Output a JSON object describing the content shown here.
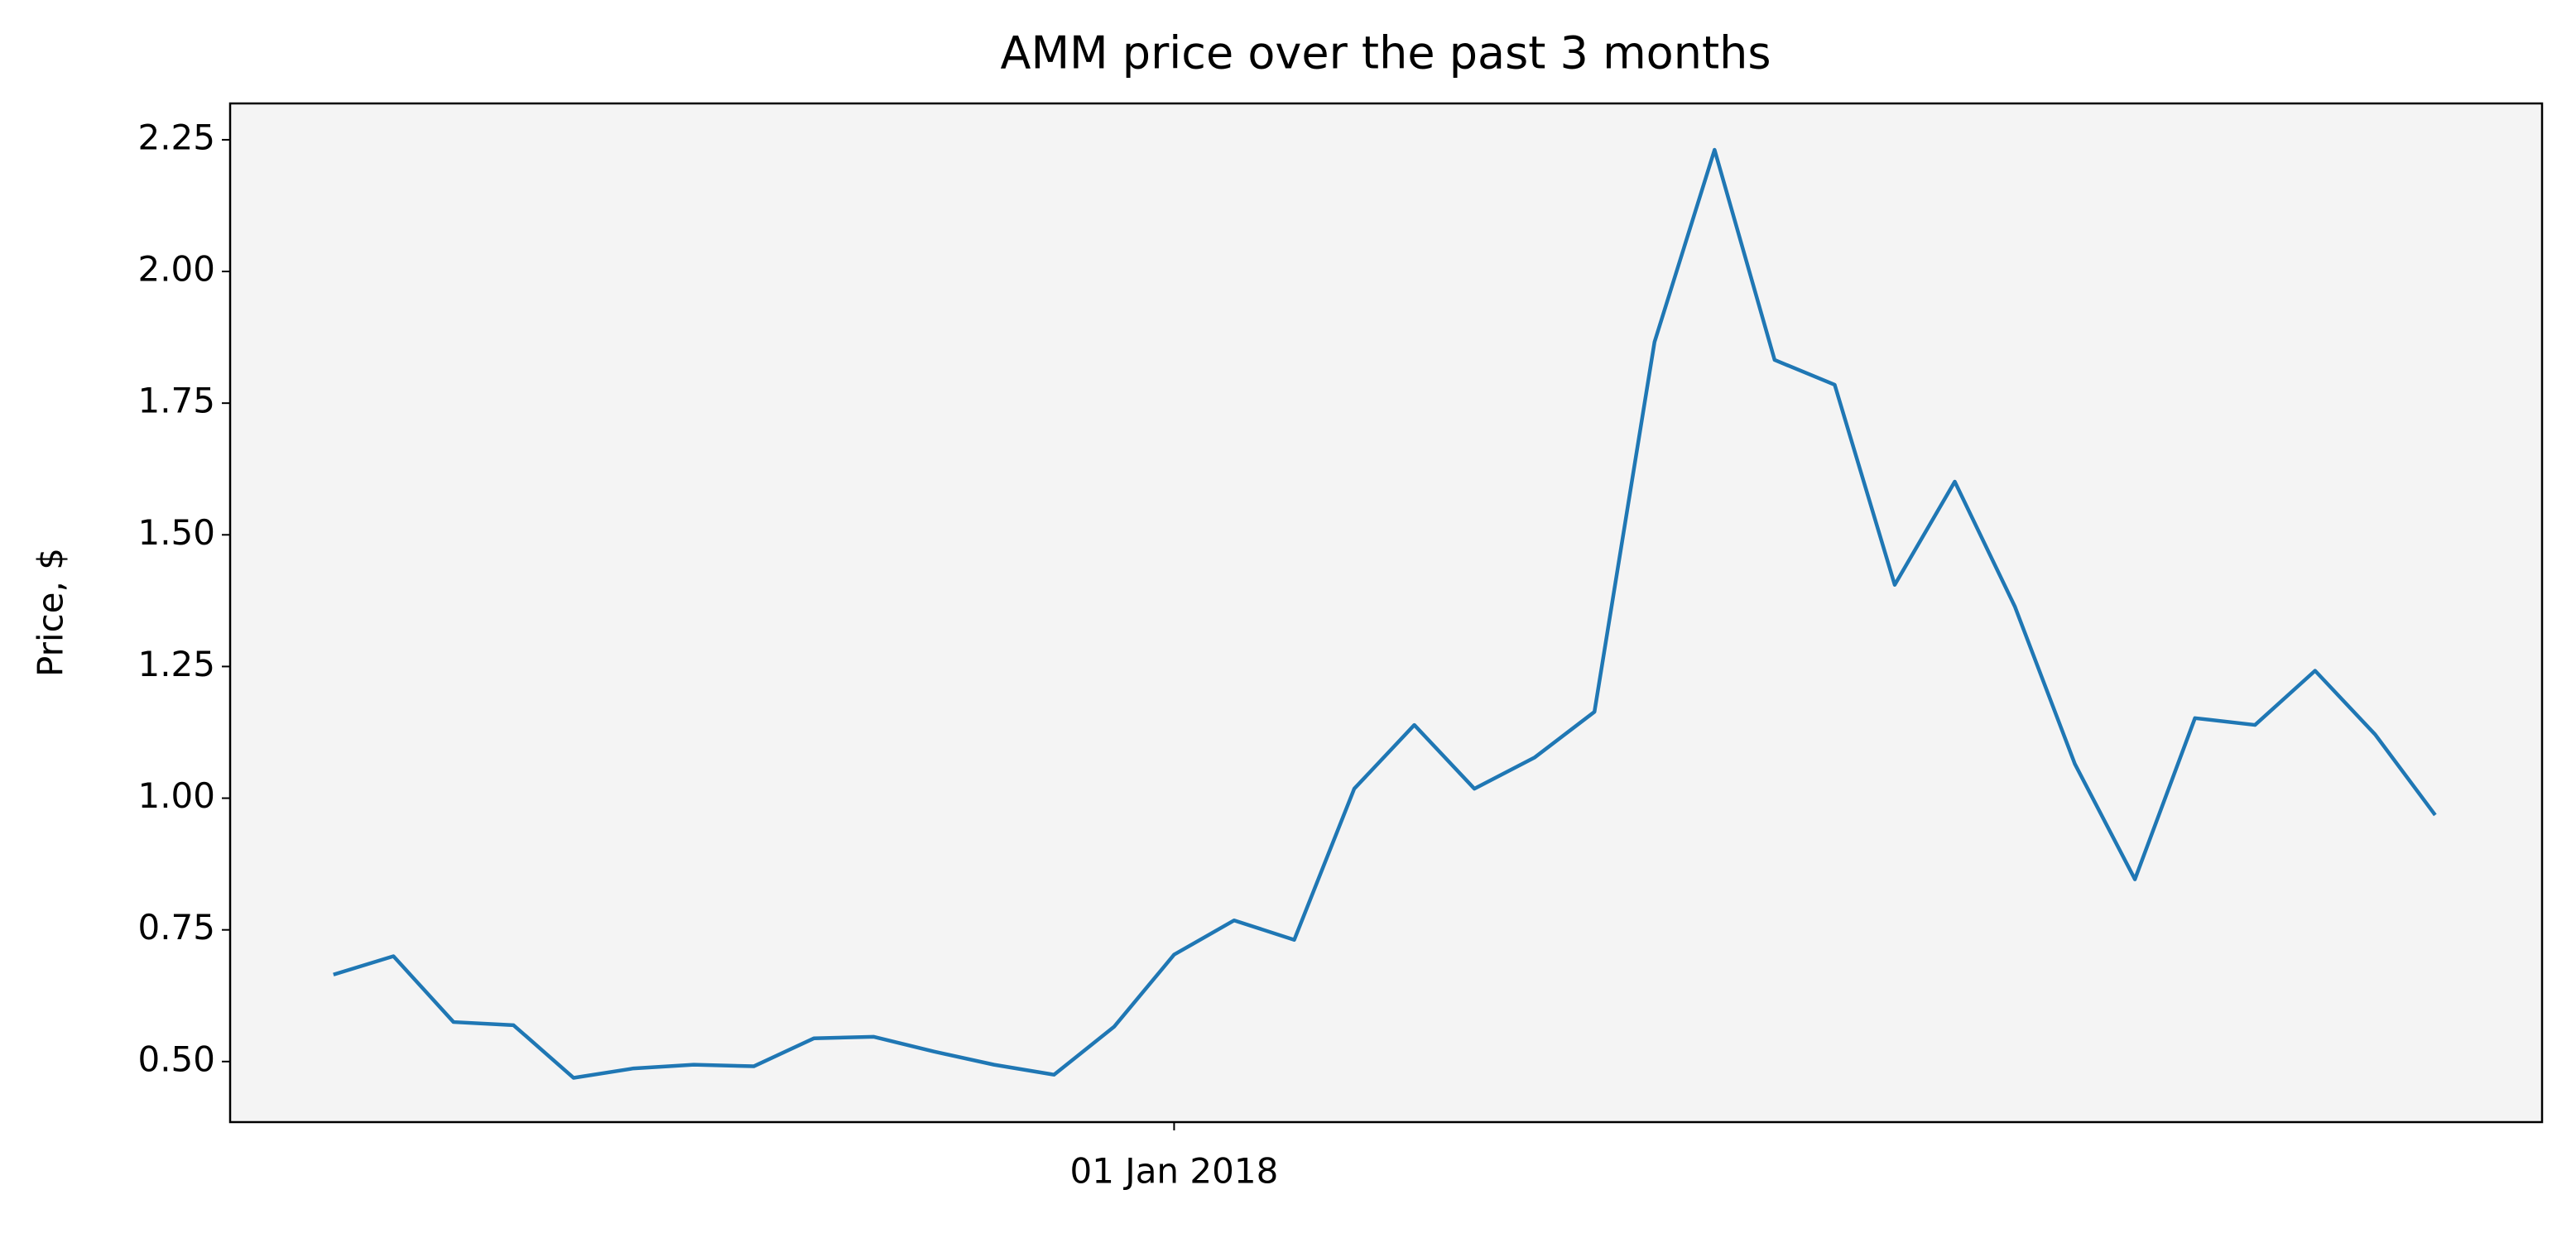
{
  "chart_data": {
    "type": "line",
    "title": "AMM price over the past 3 months",
    "ylabel": "Price, $",
    "x": [
      0,
      1,
      2,
      3,
      4,
      5,
      6,
      7,
      8,
      9,
      10,
      11,
      12,
      13,
      14,
      15,
      16,
      17,
      18,
      19,
      20,
      21,
      22,
      23,
      24,
      25,
      26,
      27,
      28,
      29,
      30,
      31,
      32,
      33,
      34,
      35
    ],
    "series": [
      {
        "color": "#1f77b4",
        "values": [
          0.665,
          0.7,
          0.575,
          0.569,
          0.469,
          0.487,
          0.494,
          0.491,
          0.544,
          0.547,
          0.519,
          0.494,
          0.475,
          0.566,
          0.703,
          0.768,
          0.731,
          1.018,
          1.139,
          1.018,
          1.077,
          1.164,
          1.866,
          2.231,
          1.832,
          1.785,
          1.405,
          1.601,
          1.364,
          1.065,
          0.846,
          1.152,
          1.139,
          1.242,
          1.121,
          0.968
        ]
      }
    ],
    "xlim": [
      -1.72,
      36.78
    ],
    "xticks": [
      {
        "value": 14,
        "label": "01 Jan 2018"
      }
    ],
    "ylim": [
      0.385,
      2.319
    ],
    "yticks": [
      {
        "value": 0.5,
        "label": "0.50"
      },
      {
        "value": 0.75,
        "label": "0.75"
      },
      {
        "value": 1.0,
        "label": "1.00"
      },
      {
        "value": 1.25,
        "label": "1.25"
      },
      {
        "value": 1.5,
        "label": "1.50"
      },
      {
        "value": 1.75,
        "label": "1.75"
      },
      {
        "value": 2.0,
        "label": "2.00"
      },
      {
        "value": 2.25,
        "label": "2.25"
      }
    ],
    "background": "#f4f4f4"
  }
}
